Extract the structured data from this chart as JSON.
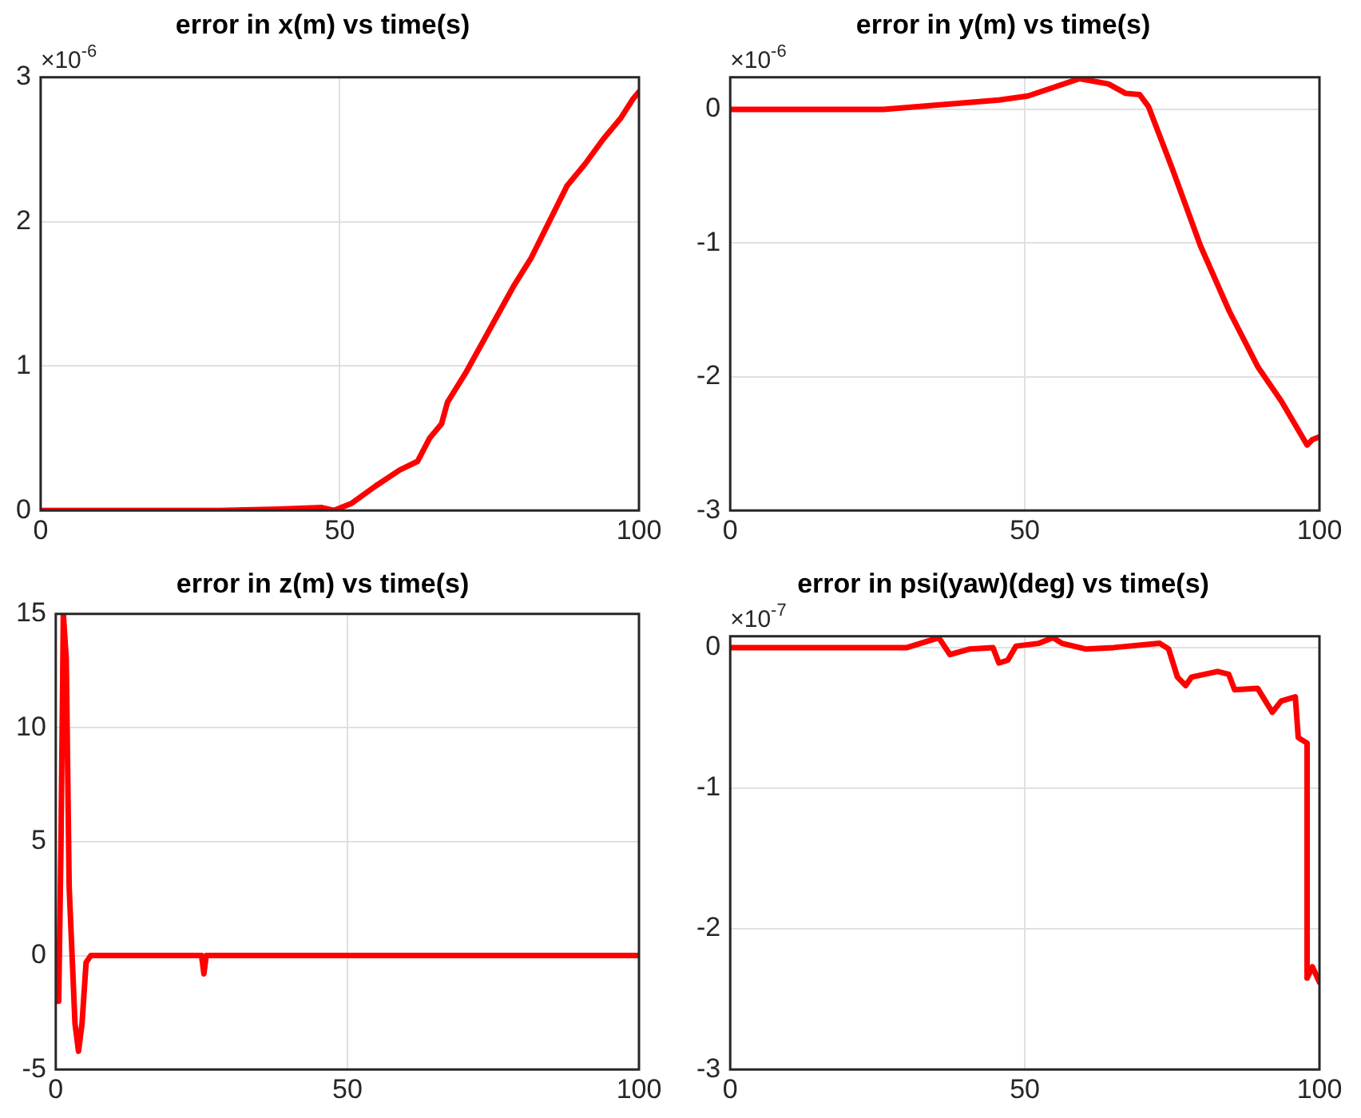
{
  "chart_data": [
    {
      "type": "line",
      "title": "error in x(m) vs time(s)",
      "annotations": [
        "×10$^{-6}$"
      ],
      "xlim": [
        0,
        100
      ],
      "xticks": [
        0,
        50,
        100
      ],
      "ylim": [
        0,
        3
      ],
      "yticks": [
        0,
        1,
        2,
        3
      ],
      "grid": true,
      "marker": "none",
      "line_style": "solid",
      "legend": false,
      "series": [
        {
          "color": "#ff0000",
          "x": [
            0,
            30,
            40,
            47,
            49,
            52,
            56,
            60,
            63,
            65,
            67,
            68,
            71,
            75,
            79,
            82,
            85,
            88,
            91,
            94,
            97,
            99,
            100
          ],
          "values": [
            0,
            0,
            0.01,
            0.02,
            0,
            0.05,
            0.17,
            0.28,
            0.34,
            0.5,
            0.6,
            0.75,
            0.95,
            1.25,
            1.55,
            1.75,
            2.0,
            2.25,
            2.4,
            2.57,
            2.72,
            2.85,
            2.9
          ]
        }
      ]
    },
    {
      "type": "line",
      "title": "error in y(m) vs time(s)",
      "annotations": [
        "×10$^{-6}$"
      ],
      "xlim": [
        0,
        100
      ],
      "xticks": [
        0,
        50,
        100
      ],
      "ylim": [
        -3,
        0.24
      ],
      "yticks": [
        -3,
        -2,
        -1,
        0
      ],
      "grid": true,
      "marker": "none",
      "line_style": "solid",
      "legend": false,
      "series": [
        {
          "color": "#ff0000",
          "x": [
            0,
            26,
            45.6,
            50.5,
            59.3,
            64.2,
            67.1,
            69.5,
            71,
            75,
            79.8,
            84.7,
            89.6,
            93.5,
            97.9,
            98.8,
            100
          ],
          "values": [
            0,
            0,
            0.07,
            0.1,
            0.23,
            0.19,
            0.12,
            0.11,
            0.02,
            -0.44,
            -1.02,
            -1.51,
            -1.93,
            -2.18,
            -2.51,
            -2.47,
            -2.45
          ]
        }
      ]
    },
    {
      "type": "line",
      "title": "error in z(m) vs time(s)",
      "xlim": [
        0,
        100
      ],
      "xticks": [
        0,
        50,
        100
      ],
      "ylim": [
        -5,
        15
      ],
      "yticks": [
        -5,
        0,
        5,
        10,
        15
      ],
      "grid": true,
      "marker": "none",
      "line_style": "solid",
      "legend": false,
      "series": [
        {
          "color": "#ff0000",
          "x": [
            0,
            0.5,
            0.9,
            1.3,
            1.8,
            2.3,
            2.8,
            3.3,
            3.9,
            4.5,
            5.2,
            6,
            25,
            25.4,
            25.8,
            100
          ],
          "values": [
            -2,
            -2,
            5,
            15,
            13,
            3,
            0,
            -3,
            -4.2,
            -3,
            -0.3,
            0,
            0,
            -0.8,
            0,
            0
          ]
        }
      ]
    },
    {
      "type": "line",
      "title": "error in psi(yaw)(deg) vs time(s)",
      "annotations": [
        "×10$^{-7}$"
      ],
      "xlim": [
        0,
        100
      ],
      "xticks": [
        0,
        50,
        100
      ],
      "ylim": [
        -3,
        0.08
      ],
      "yticks": [
        -3,
        -2,
        -1,
        0
      ],
      "grid": true,
      "marker": "none",
      "line_style": "solid",
      "legend": false,
      "series": [
        {
          "color": "#ff0000",
          "x": [
            0,
            30,
            35.4,
            37.3,
            40.7,
            44.6,
            45.6,
            47.1,
            48.5,
            52.4,
            54.8,
            56.3,
            60.3,
            65.1,
            72.9,
            74.4,
            75.9,
            77.3,
            78.3,
            82.7,
            84.6,
            85.6,
            89.5,
            92,
            93.5,
            95.9,
            96.4,
            97.9,
            97.9,
            98.8,
            100
          ],
          "values": [
            0,
            0,
            0.07,
            -0.05,
            -0.01,
            0,
            -0.11,
            -0.09,
            0.01,
            0.03,
            0.07,
            0.03,
            -0.01,
            0,
            0.03,
            -0.01,
            -0.21,
            -0.27,
            -0.21,
            -0.17,
            -0.19,
            -0.3,
            -0.29,
            -0.46,
            -0.38,
            -0.35,
            -0.64,
            -0.68,
            -2.35,
            -2.27,
            -2.38
          ]
        }
      ]
    }
  ]
}
